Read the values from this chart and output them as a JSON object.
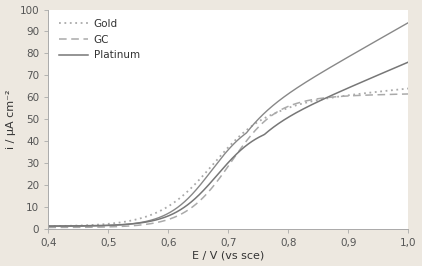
{
  "xlabel": "E / V (vs sce)",
  "ylabel": "i / μA cm⁻²",
  "xlim": [
    0.4,
    1.0
  ],
  "ylim": [
    0,
    100
  ],
  "xticks": [
    0.4,
    0.5,
    0.6,
    0.7,
    0.8,
    0.9,
    1.0
  ],
  "yticks": [
    0,
    10,
    20,
    30,
    40,
    50,
    60,
    70,
    80,
    90,
    100
  ],
  "xtick_labels": [
    "0,4",
    "0,5",
    "0,6",
    "0,7",
    "0,8",
    "0,9",
    "1,0"
  ],
  "ytick_labels": [
    "0",
    "10",
    "20",
    "30",
    "40",
    "50",
    "60",
    "70",
    "80",
    "90",
    "100"
  ],
  "legend": [
    {
      "label": "Gold",
      "linestyle": "dotted",
      "color": "#aaaaaa"
    },
    {
      "label": "GC",
      "linestyle": "dashed",
      "color": "#aaaaaa"
    },
    {
      "label": "Platinum",
      "linestyle": "solid",
      "color": "#777777"
    }
  ],
  "outer_bg": "#ede8e0",
  "plot_bg": "#ffffff",
  "spine_color": "#aaaaaa",
  "tick_label_color": "#555555",
  "axis_label_color": "#333333"
}
